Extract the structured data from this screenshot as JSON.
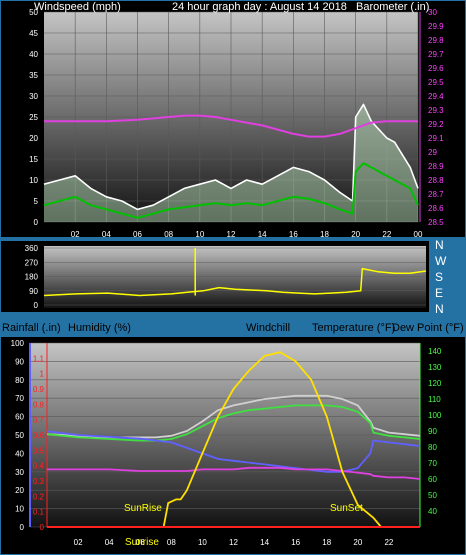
{
  "colors": {
    "page_bg": "#2472a4",
    "plot_bg_top": "#c8c8c8",
    "plot_bg_bottom": "#101010",
    "barometer": "#e040e0",
    "wind_gust": "#ffffff",
    "wind_speed": "#00c000",
    "wind_dir": "#ffff00",
    "rain_axis": "#ff2020",
    "humidity": "#6060ff",
    "temperature": "#d0d0d0",
    "dewpoint": "#e040e0",
    "windchill": "#40e040",
    "sun": "#ffe000",
    "left_axis_text": "#ffffff",
    "right_axis_text_top": "#ff40ff",
    "right_axis_text_bottom": "#40ff40"
  },
  "header": {
    "wind_title": "Windspeed (mph)",
    "date_title": "24 hour graph day : August 14 2018",
    "baro_title": "Barometer (.in)"
  },
  "compass": {
    "n_top": "N",
    "w": "W",
    "s": "S",
    "e": "E",
    "n_bottom": "N"
  },
  "lower_header": {
    "rain": "Rainfall (.in)",
    "humidity": "Humidity (%)",
    "windchill": "Windchill",
    "temperature": "Temperature (°F)",
    "dewpoint": "Dew Point (°F)"
  },
  "sun_labels": {
    "sunrise": "SunRise",
    "sunset": "SunSet",
    "overlap": "Sunrise"
  },
  "chart_data": [
    {
      "type": "line",
      "title": "24 hour graph day : August 14 2018",
      "ylabel": "Windspeed (mph)",
      "y2label": "Barometer (.in)",
      "x_ticks": [
        "02",
        "04",
        "06",
        "08",
        "10",
        "12",
        "14",
        "16",
        "18",
        "20",
        "22",
        "00"
      ],
      "x_range": [
        0,
        24
      ],
      "ylim": [
        0,
        50
      ],
      "y_ticks": [
        0,
        5,
        10,
        15,
        20,
        25,
        30,
        35,
        40,
        45,
        50
      ],
      "y2lim": [
        28.5,
        30.0
      ],
      "y2_ticks": [
        "28.5",
        "28.6",
        "28.7",
        "28.8",
        "28.9",
        "29",
        "29.1",
        "29.2",
        "29.3",
        "29.4",
        "29.5",
        "29.6",
        "29.7",
        "29.8",
        "29.9",
        "30"
      ],
      "series": [
        {
          "name": "Barometer",
          "axis": "right",
          "points": [
            [
              0,
              29.22
            ],
            [
              2,
              29.22
            ],
            [
              4,
              29.22
            ],
            [
              6,
              29.23
            ],
            [
              7,
              29.24
            ],
            [
              8,
              29.25
            ],
            [
              9,
              29.26
            ],
            [
              10,
              29.26
            ],
            [
              11,
              29.25
            ],
            [
              12,
              29.23
            ],
            [
              13,
              29.21
            ],
            [
              14,
              29.19
            ],
            [
              15,
              29.16
            ],
            [
              16,
              29.13
            ],
            [
              17,
              29.11
            ],
            [
              18,
              29.11
            ],
            [
              19,
              29.13
            ],
            [
              20,
              29.17
            ],
            [
              21,
              29.21
            ],
            [
              22,
              29.22
            ],
            [
              23,
              29.22
            ],
            [
              24,
              29.22
            ]
          ]
        },
        {
          "name": "Wind gust",
          "axis": "left",
          "points": [
            [
              0,
              9
            ],
            [
              1,
              10
            ],
            [
              2,
              11
            ],
            [
              3,
              8
            ],
            [
              4,
              6
            ],
            [
              5,
              5
            ],
            [
              6,
              3
            ],
            [
              7,
              4
            ],
            [
              8,
              6
            ],
            [
              9,
              8
            ],
            [
              10,
              9
            ],
            [
              11,
              10
            ],
            [
              12,
              8
            ],
            [
              13,
              10
            ],
            [
              14,
              9
            ],
            [
              15,
              11
            ],
            [
              16,
              13
            ],
            [
              17,
              12
            ],
            [
              18,
              10
            ],
            [
              19,
              7
            ],
            [
              19.8,
              5
            ],
            [
              20,
              25
            ],
            [
              20.5,
              28
            ],
            [
              21,
              24
            ],
            [
              21.5,
              22
            ],
            [
              22,
              20
            ],
            [
              22.5,
              19
            ],
            [
              23,
              16
            ],
            [
              23.5,
              13
            ],
            [
              24,
              8
            ]
          ]
        },
        {
          "name": "Wind average",
          "axis": "left",
          "points": [
            [
              0,
              4
            ],
            [
              1,
              5
            ],
            [
              2,
              6
            ],
            [
              3,
              4
            ],
            [
              4,
              3
            ],
            [
              5,
              2
            ],
            [
              6,
              1
            ],
            [
              7,
              2
            ],
            [
              8,
              3
            ],
            [
              9,
              3.5
            ],
            [
              10,
              4
            ],
            [
              11,
              4.5
            ],
            [
              12,
              4
            ],
            [
              13,
              4.5
            ],
            [
              14,
              4
            ],
            [
              15,
              5
            ],
            [
              16,
              6
            ],
            [
              17,
              5.5
            ],
            [
              18,
              4.5
            ],
            [
              19,
              3
            ],
            [
              19.8,
              2
            ],
            [
              20,
              12
            ],
            [
              20.5,
              14
            ],
            [
              21,
              13
            ],
            [
              21.5,
              12
            ],
            [
              22,
              11
            ],
            [
              22.5,
              10
            ],
            [
              23,
              9
            ],
            [
              23.5,
              8
            ],
            [
              24,
              4
            ]
          ]
        }
      ]
    },
    {
      "type": "line",
      "ylabel": "Wind direction",
      "x_range": [
        0,
        24
      ],
      "ylim": [
        0,
        360
      ],
      "y_ticks": [
        0,
        90,
        180,
        270,
        360
      ],
      "series": [
        {
          "name": "Wind direction",
          "points": [
            [
              0,
              60
            ],
            [
              2,
              70
            ],
            [
              4,
              75
            ],
            [
              6,
              60
            ],
            [
              8,
              70
            ],
            [
              9,
              80
            ],
            [
              9.5,
              85
            ],
            [
              10,
              90
            ],
            [
              11,
              110
            ],
            [
              12,
              100
            ],
            [
              13,
              95
            ],
            [
              14,
              90
            ],
            [
              15,
              80
            ],
            [
              16,
              75
            ],
            [
              17,
              70
            ],
            [
              18,
              75
            ],
            [
              19,
              80
            ],
            [
              19.9,
              90
            ],
            [
              20,
              230
            ],
            [
              21,
              210
            ],
            [
              22,
              200
            ],
            [
              23,
              200
            ],
            [
              24,
              215
            ]
          ]
        }
      ]
    },
    {
      "type": "line",
      "x_ticks": [
        "00",
        "02",
        "04",
        "06",
        "08",
        "10",
        "12",
        "14",
        "16",
        "18",
        "20",
        "22"
      ],
      "x_range": [
        -1,
        23
      ],
      "y_rain": {
        "label": "Rainfall (.in)",
        "ylim": [
          0,
          1.2
        ],
        "ticks": [
          "0",
          "0.1",
          "0.2",
          "0.3",
          "0.4",
          "0.5",
          "0.6",
          "0.7",
          "0.8",
          "0.9",
          "1",
          "1.1"
        ]
      },
      "y_humidity": {
        "label": "Humidity (%)",
        "ylim": [
          0,
          100
        ],
        "ticks": [
          0,
          10,
          20,
          30,
          40,
          50,
          60,
          70,
          80,
          90,
          100
        ]
      },
      "y_temp": {
        "label": "Temperature (°F)",
        "ylim": [
          30,
          145
        ],
        "ticks": [
          40,
          50,
          60,
          70,
          80,
          90,
          100,
          110,
          120,
          130,
          140
        ]
      },
      "series": [
        {
          "name": "Temperature",
          "axis": "temp",
          "points": [
            [
              -1,
              88
            ],
            [
              1,
              87
            ],
            [
              3,
              86
            ],
            [
              5,
              86
            ],
            [
              6,
              86
            ],
            [
              7,
              87
            ],
            [
              8,
              90
            ],
            [
              9,
              96
            ],
            [
              10,
              103
            ],
            [
              11,
              106
            ],
            [
              12,
              108
            ],
            [
              13,
              110
            ],
            [
              14,
              111
            ],
            [
              15,
              112
            ],
            [
              16,
              112
            ],
            [
              17,
              112
            ],
            [
              18,
              110
            ],
            [
              19,
              106
            ],
            [
              19.8,
              96
            ],
            [
              20,
              92
            ],
            [
              21,
              89
            ],
            [
              22,
              88
            ],
            [
              23,
              87
            ]
          ]
        },
        {
          "name": "Windchill",
          "axis": "temp",
          "points": [
            [
              -1,
              88
            ],
            [
              1,
              86
            ],
            [
              3,
              85
            ],
            [
              5,
              84
            ],
            [
              6,
              84
            ],
            [
              7,
              85
            ],
            [
              8,
              88
            ],
            [
              9,
              93
            ],
            [
              10,
              98
            ],
            [
              11,
              101
            ],
            [
              12,
              103
            ],
            [
              13,
              104
            ],
            [
              14,
              105
            ],
            [
              15,
              106
            ],
            [
              16,
              106
            ],
            [
              17,
              106
            ],
            [
              18,
              105
            ],
            [
              19,
              102
            ],
            [
              19.8,
              95
            ],
            [
              20,
              89
            ],
            [
              21,
              87
            ],
            [
              22,
              86
            ],
            [
              23,
              85
            ]
          ]
        },
        {
          "name": "Humidity",
          "axis": "humidity",
          "points": [
            [
              -1,
              52
            ],
            [
              1,
              50
            ],
            [
              3,
              49
            ],
            [
              5,
              48
            ],
            [
              6,
              47
            ],
            [
              7,
              46
            ],
            [
              8,
              43
            ],
            [
              9,
              40
            ],
            [
              10,
              37
            ],
            [
              11,
              36
            ],
            [
              12,
              35
            ],
            [
              13,
              34
            ],
            [
              14,
              33
            ],
            [
              15,
              32
            ],
            [
              16,
              31
            ],
            [
              17,
              30
            ],
            [
              18,
              30
            ],
            [
              19,
              32
            ],
            [
              19.8,
              40
            ],
            [
              20,
              47
            ],
            [
              21,
              46
            ],
            [
              22,
              45
            ],
            [
              23,
              44
            ]
          ]
        },
        {
          "name": "Dew point",
          "axis": "temp",
          "points": [
            [
              -1,
              66
            ],
            [
              1,
              66
            ],
            [
              3,
              66
            ],
            [
              5,
              65
            ],
            [
              6,
              65
            ],
            [
              7,
              65
            ],
            [
              8,
              65
            ],
            [
              9,
              66
            ],
            [
              10,
              66
            ],
            [
              11,
              66
            ],
            [
              12,
              67
            ],
            [
              13,
              67
            ],
            [
              14,
              67
            ],
            [
              15,
              66
            ],
            [
              16,
              66
            ],
            [
              17,
              66
            ],
            [
              18,
              65
            ],
            [
              19,
              64
            ],
            [
              19.8,
              63
            ],
            [
              20,
              62
            ],
            [
              21,
              61
            ],
            [
              22,
              61
            ],
            [
              23,
              60
            ]
          ]
        },
        {
          "name": "Sun",
          "axis": "humidity",
          "points": [
            [
              5.2,
              0
            ],
            [
              6.5,
              0
            ],
            [
              6.8,
              13
            ],
            [
              7.3,
              15
            ],
            [
              7.6,
              15
            ],
            [
              8,
              20
            ],
            [
              9,
              40
            ],
            [
              10,
              60
            ],
            [
              11,
              75
            ],
            [
              12,
              85
            ],
            [
              13,
              93
            ],
            [
              14,
              95
            ],
            [
              15,
              90
            ],
            [
              16,
              80
            ],
            [
              17,
              60
            ],
            [
              18,
              30
            ],
            [
              19,
              12
            ],
            [
              20,
              5
            ],
            [
              20.5,
              0
            ]
          ]
        },
        {
          "name": "Rainfall",
          "axis": "rain",
          "points": [
            [
              -1,
              0
            ],
            [
              23,
              0
            ]
          ]
        }
      ]
    }
  ]
}
